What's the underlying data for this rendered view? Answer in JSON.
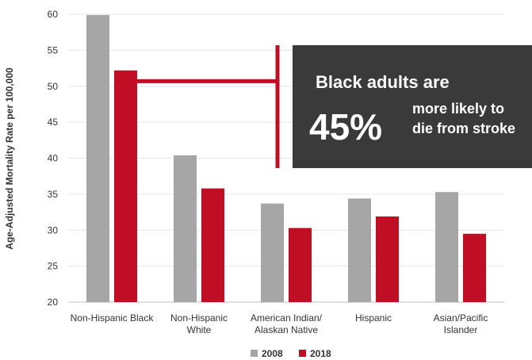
{
  "chart_data": {
    "type": "bar",
    "categories": [
      [
        "Non-Hispanic Black"
      ],
      [
        "Non-Hispanic",
        "White"
      ],
      [
        "American Indian/",
        "Alaskan Native"
      ],
      [
        "Hispanic"
      ],
      [
        "Asian/Pacific",
        "Islander"
      ]
    ],
    "series": [
      {
        "name": "2008",
        "values": [
          59.9,
          40.4,
          33.7,
          34.4,
          35.3
        ]
      },
      {
        "name": "2018",
        "values": [
          52.2,
          35.8,
          30.3,
          31.9,
          29.5
        ]
      }
    ],
    "ylabel": "Age-Adjusted Mortality Rate per 100,000",
    "xlabel": "",
    "title": "",
    "ylim": [
      20,
      60
    ],
    "yticks": [
      20,
      25,
      30,
      35,
      40,
      45,
      50,
      55,
      60
    ],
    "grid": true,
    "legend_position": "bottom",
    "colors": {
      "2008": "#a6a6a6",
      "2018": "#c00f24"
    },
    "annotation": {
      "line1": "Black adults are",
      "big": "45%",
      "line2": "more likely to",
      "line3": "die from stroke",
      "box_color": "#3a3a3a",
      "accent_color": "#c00f24"
    }
  }
}
